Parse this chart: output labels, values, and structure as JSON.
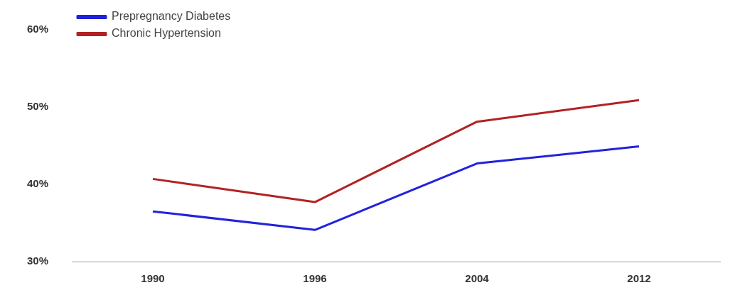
{
  "chart_data": {
    "type": "line",
    "categories": [
      "1990",
      "1996",
      "2004",
      "2012"
    ],
    "series": [
      {
        "name": "Prepregnancy Diabetes",
        "color": "#2222dd",
        "values": [
          36.5,
          34.1,
          42.7,
          44.9
        ]
      },
      {
        "name": "Chronic Hypertension",
        "color": "#b22222",
        "values": [
          40.7,
          37.7,
          48.1,
          50.9
        ]
      }
    ],
    "ylim": [
      30,
      60
    ],
    "yticks": [
      {
        "value": 30,
        "label": "30%"
      },
      {
        "value": 40,
        "label": "40%"
      },
      {
        "value": 50,
        "label": "50%"
      },
      {
        "value": 60,
        "label": "60%"
      }
    ],
    "grid": false,
    "legend": "top left",
    "marker": "none",
    "line_style": "solid"
  }
}
